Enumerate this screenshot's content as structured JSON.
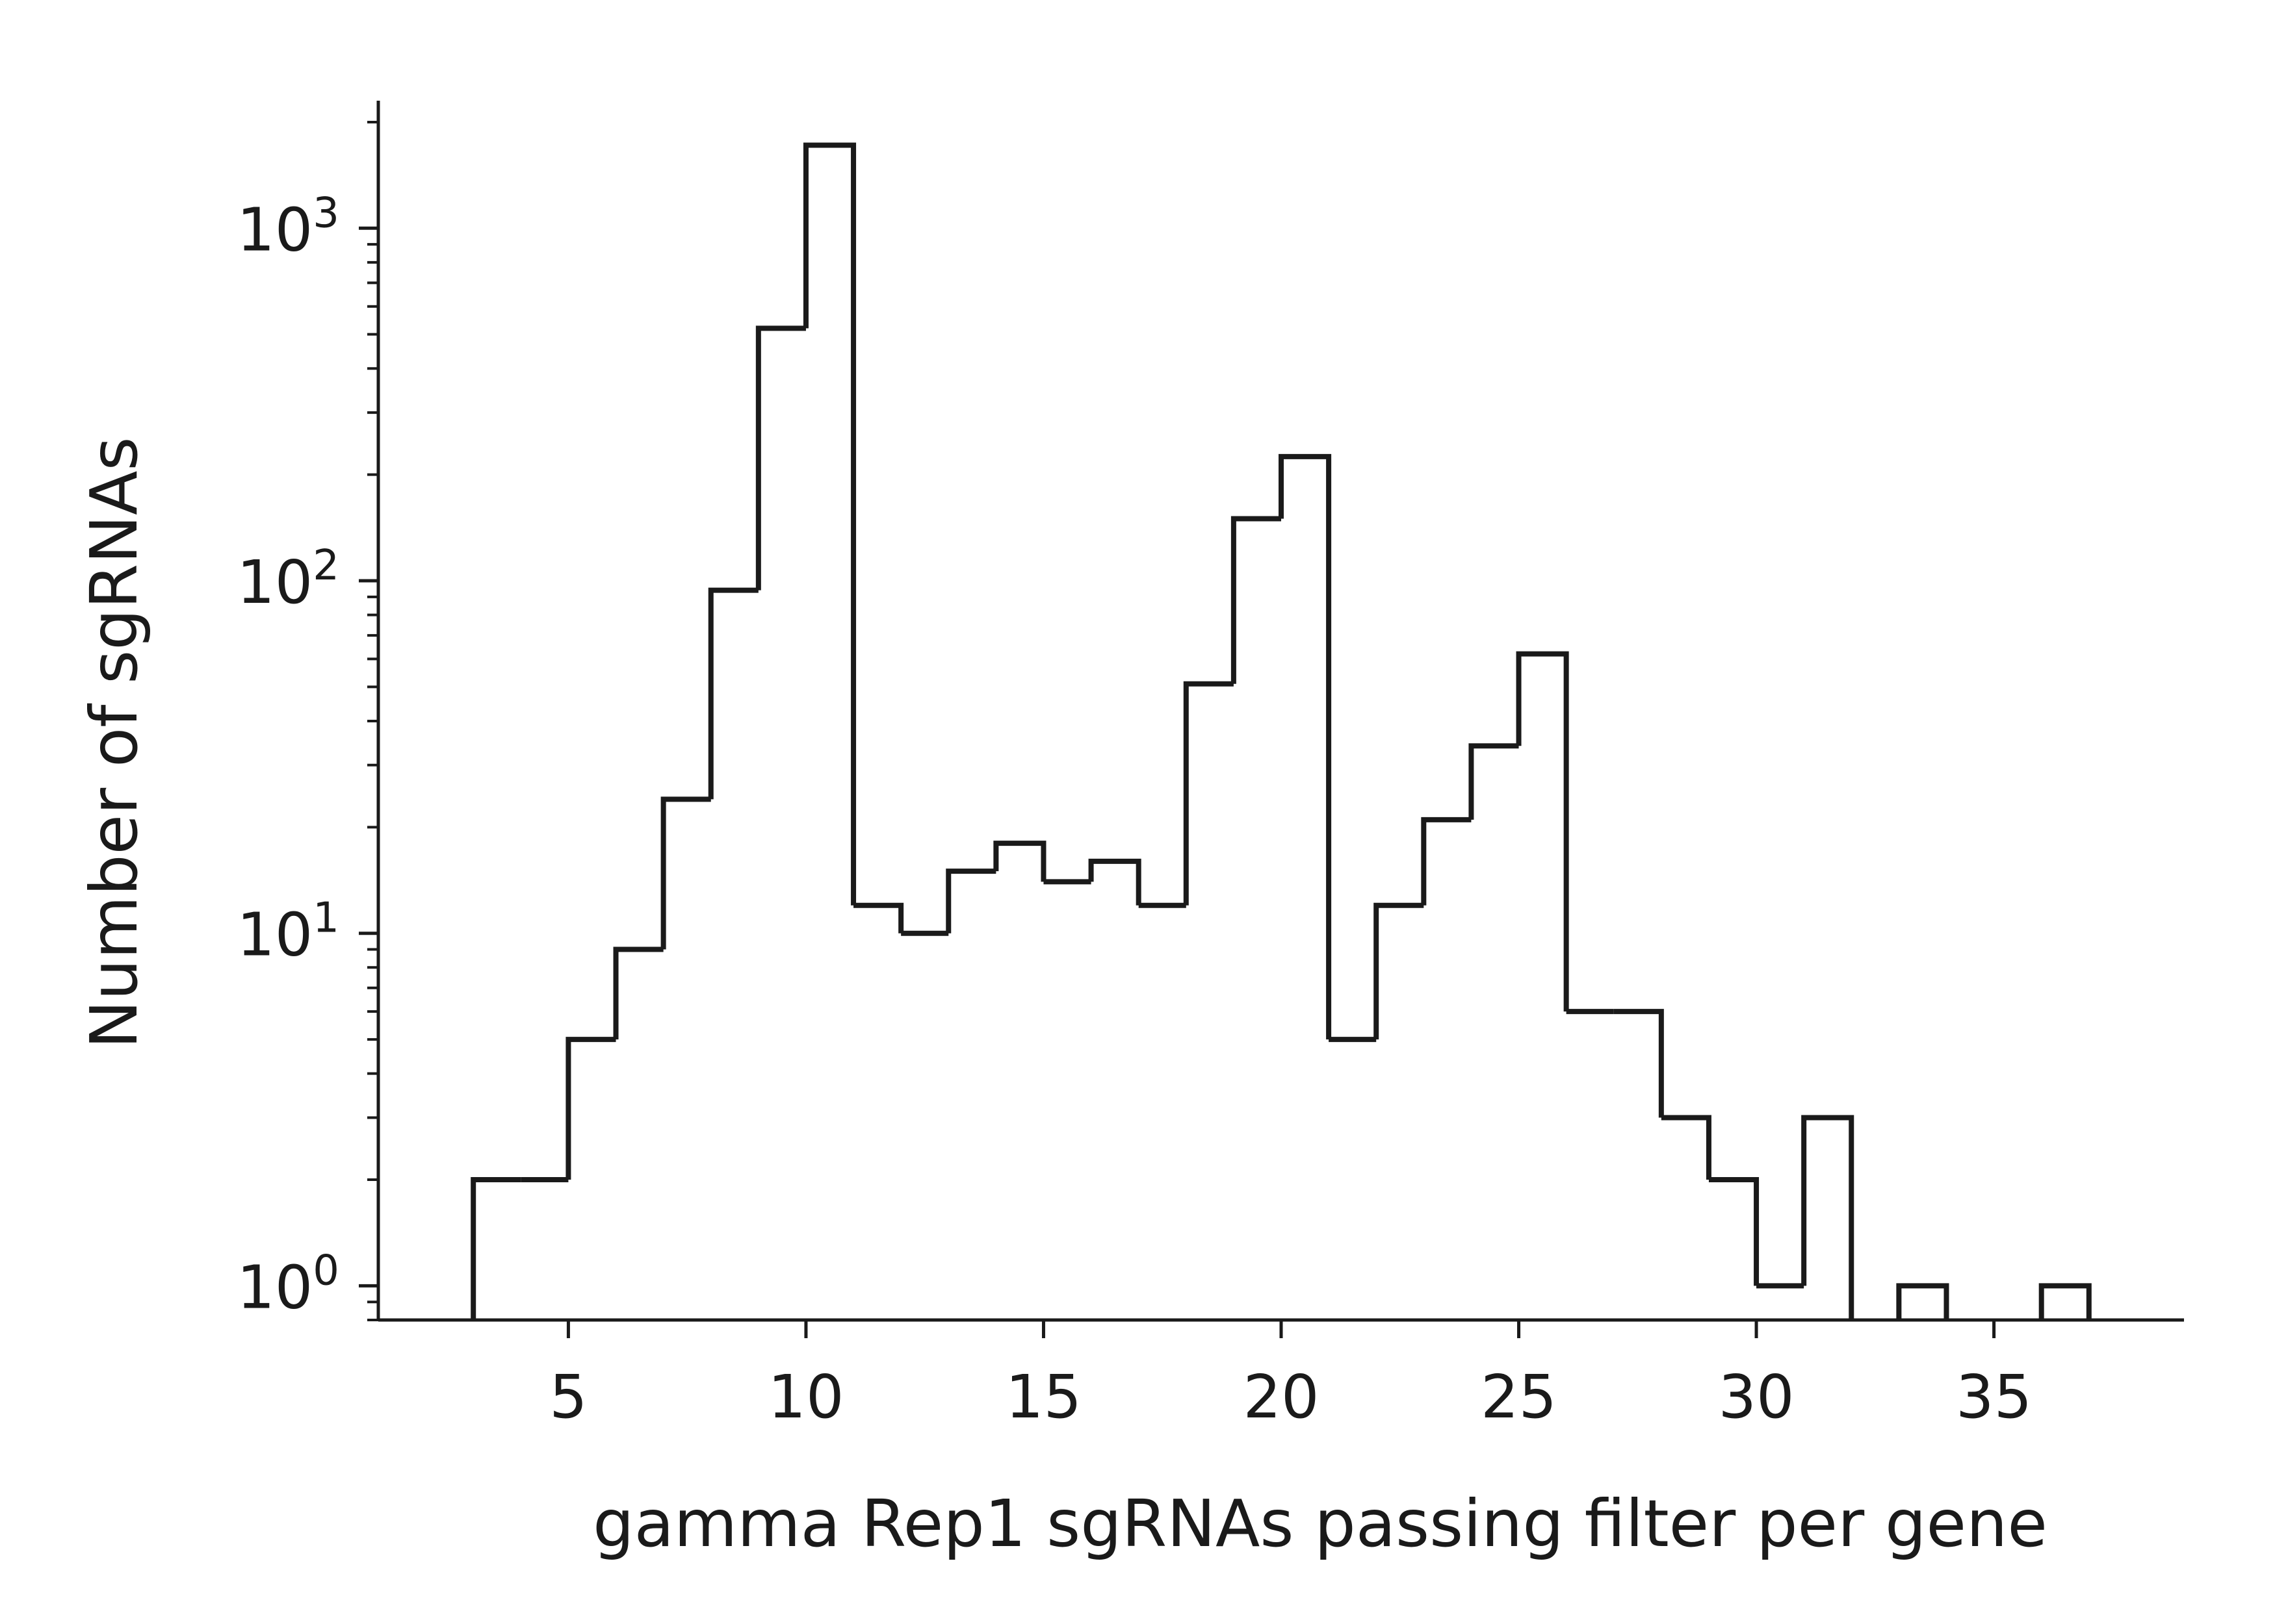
{
  "chart_data": {
    "type": "bar",
    "style": "histogram-step",
    "xlabel": "gamma Rep1 sgRNAs passing filter per gene",
    "ylabel": "Number of sgRNAs",
    "yscale": "log",
    "xlim": [
      1,
      39
    ],
    "ylim": [
      0.8,
      2300
    ],
    "x_ticks": [
      5,
      10,
      15,
      20,
      25,
      30,
      35
    ],
    "x_tick_labels": [
      "5",
      "10",
      "15",
      "20",
      "25",
      "30",
      "35"
    ],
    "y_ticks": [
      1,
      10,
      100,
      1000
    ],
    "y_tick_labels": [
      {
        "base": "10",
        "exp": "0"
      },
      {
        "base": "10",
        "exp": "1"
      },
      {
        "base": "10",
        "exp": "2"
      },
      {
        "base": "10",
        "exp": "3"
      }
    ],
    "grid": false,
    "line_color": "#1a1a1a",
    "bins": [
      {
        "x0": 3,
        "x1": 4,
        "count": 2
      },
      {
        "x0": 4,
        "x1": 5,
        "count": 2
      },
      {
        "x0": 5,
        "x1": 6,
        "count": 5
      },
      {
        "x0": 6,
        "x1": 7,
        "count": 9
      },
      {
        "x0": 7,
        "x1": 8,
        "count": 24
      },
      {
        "x0": 8,
        "x1": 9,
        "count": 94
      },
      {
        "x0": 9,
        "x1": 10,
        "count": 520
      },
      {
        "x0": 10,
        "x1": 11,
        "count": 1720
      },
      {
        "x0": 11,
        "x1": 12,
        "count": 12
      },
      {
        "x0": 12,
        "x1": 13,
        "count": 10
      },
      {
        "x0": 13,
        "x1": 14,
        "count": 15
      },
      {
        "x0": 14,
        "x1": 15,
        "count": 18
      },
      {
        "x0": 15,
        "x1": 16,
        "count": 14
      },
      {
        "x0": 16,
        "x1": 17,
        "count": 16
      },
      {
        "x0": 17,
        "x1": 18,
        "count": 12
      },
      {
        "x0": 18,
        "x1": 19,
        "count": 51
      },
      {
        "x0": 19,
        "x1": 20,
        "count": 150
      },
      {
        "x0": 20,
        "x1": 21,
        "count": 225
      },
      {
        "x0": 21,
        "x1": 22,
        "count": 5
      },
      {
        "x0": 22,
        "x1": 23,
        "count": 12
      },
      {
        "x0": 23,
        "x1": 24,
        "count": 21
      },
      {
        "x0": 24,
        "x1": 25,
        "count": 34
      },
      {
        "x0": 25,
        "x1": 26,
        "count": 62
      },
      {
        "x0": 26,
        "x1": 27,
        "count": 6
      },
      {
        "x0": 27,
        "x1": 28,
        "count": 6
      },
      {
        "x0": 28,
        "x1": 29,
        "count": 3
      },
      {
        "x0": 29,
        "x1": 30,
        "count": 2
      },
      {
        "x0": 30,
        "x1": 31,
        "count": 1
      },
      {
        "x0": 31,
        "x1": 32,
        "count": 3
      },
      {
        "x0": 32,
        "x1": 33,
        "count": 0
      },
      {
        "x0": 33,
        "x1": 34,
        "count": 1
      },
      {
        "x0": 34,
        "x1": 35,
        "count": 0
      },
      {
        "x0": 35,
        "x1": 36,
        "count": 0
      },
      {
        "x0": 36,
        "x1": 37,
        "count": 1
      }
    ]
  }
}
